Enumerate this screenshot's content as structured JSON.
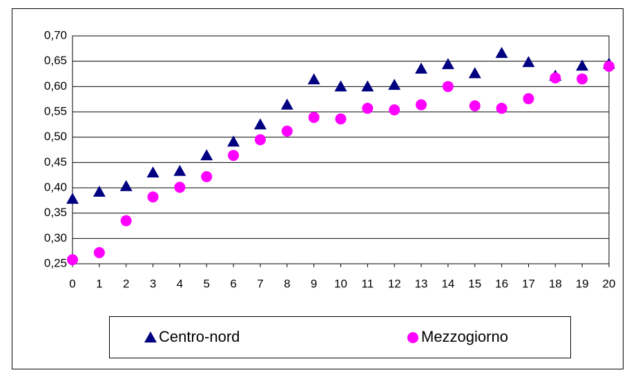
{
  "chart_data": {
    "type": "scatter",
    "x": [
      0,
      1,
      2,
      3,
      4,
      5,
      6,
      7,
      8,
      9,
      10,
      11,
      12,
      13,
      14,
      15,
      16,
      17,
      18,
      19,
      20
    ],
    "series": [
      {
        "name": "Centro-nord",
        "color": "#000080",
        "marker": "triangle",
        "values": [
          0.378,
          0.392,
          0.403,
          0.43,
          0.433,
          0.464,
          0.491,
          0.525,
          0.564,
          0.614,
          0.6,
          0.6,
          0.603,
          0.635,
          0.644,
          0.626,
          0.666,
          0.648,
          0.621,
          0.641,
          0.645
        ]
      },
      {
        "name": "Mezzogiorno",
        "color": "#ff00ff",
        "marker": "circle",
        "values": [
          0.258,
          0.272,
          0.335,
          0.382,
          0.401,
          0.422,
          0.464,
          0.495,
          0.512,
          0.539,
          0.536,
          0.557,
          0.554,
          0.564,
          0.6,
          0.562,
          0.557,
          0.576,
          0.617,
          0.615,
          0.64
        ]
      }
    ],
    "xlim": [
      0,
      20
    ],
    "xticks": [
      0,
      1,
      2,
      3,
      4,
      5,
      6,
      7,
      8,
      9,
      10,
      11,
      12,
      13,
      14,
      15,
      16,
      17,
      18,
      19,
      20
    ],
    "ylim": [
      0.25,
      0.7
    ],
    "yticks": [
      {
        "value": 0.25,
        "label": "0,25"
      },
      {
        "value": 0.3,
        "label": "0,30"
      },
      {
        "value": 0.35,
        "label": "0,35"
      },
      {
        "value": 0.4,
        "label": "0,40"
      },
      {
        "value": 0.45,
        "label": "0,45"
      },
      {
        "value": 0.5,
        "label": "0,50"
      },
      {
        "value": 0.55,
        "label": "0,55"
      },
      {
        "value": 0.6,
        "label": "0,60"
      },
      {
        "value": 0.65,
        "label": "0,65"
      },
      {
        "value": 0.7,
        "label": "0,70"
      }
    ],
    "grid": true,
    "legend": "bottom"
  }
}
